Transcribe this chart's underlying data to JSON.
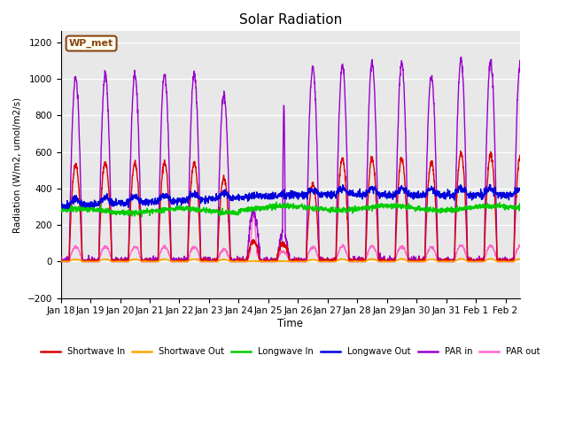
{
  "title": "Solar Radiation",
  "ylabel": "Radiation (W/m2, umol/m2/s)",
  "xlabel": "Time",
  "ylim": [
    -200,
    1260
  ],
  "yticks": [
    -200,
    0,
    200,
    400,
    600,
    800,
    1000,
    1200
  ],
  "fig_bg": "#ffffff",
  "plot_bg": "#e8e8e8",
  "annotation_text": "WP_met",
  "annotation_bg": "#fffff0",
  "annotation_border": "#8B4513",
  "x_labels": [
    "Jan 18",
    "Jan 19",
    "Jan 20",
    "Jan 21",
    "Jan 22",
    "Jan 23",
    "Jan 24",
    "Jan 25",
    "Jan 26",
    "Jan 27",
    "Jan 28",
    "Jan 29",
    "Jan 30",
    "Jan 31",
    "Feb 1",
    "Feb 2"
  ],
  "series": {
    "shortwave_in": {
      "color": "#dd0000",
      "label": "Shortwave In",
      "lw": 1.0
    },
    "shortwave_out": {
      "color": "#ffa500",
      "label": "Shortwave Out",
      "lw": 1.0
    },
    "longwave_in": {
      "color": "#00cc00",
      "label": "Longwave In",
      "lw": 1.0
    },
    "longwave_out": {
      "color": "#0000dd",
      "label": "Longwave Out",
      "lw": 1.0
    },
    "par_in": {
      "color": "#9900cc",
      "label": "PAR in",
      "lw": 1.0
    },
    "par_out": {
      "color": "#ff66cc",
      "label": "PAR out",
      "lw": 1.0
    }
  }
}
